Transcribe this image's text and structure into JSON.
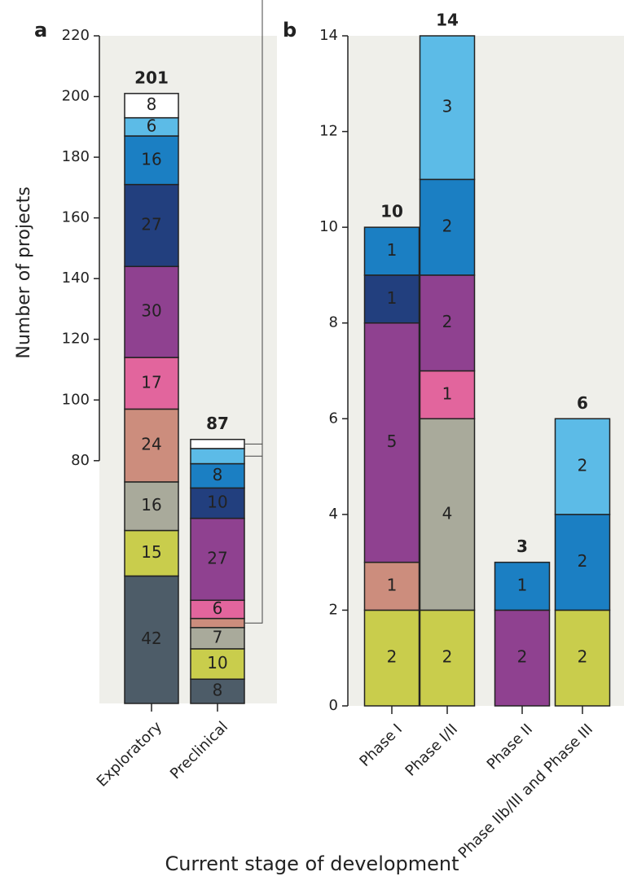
{
  "chart_data": [
    {
      "type": "stacked_bar",
      "panel": "a",
      "ylabel": "Number of projects",
      "xlabel": "Current stage of development",
      "categories": [
        "Exploratory",
        "Preclinical"
      ],
      "totals": [
        201,
        87
      ],
      "ylim": [
        0,
        220
      ],
      "yticks": [
        80,
        100,
        120,
        140,
        160,
        180,
        200,
        220
      ],
      "series": [
        {
          "color": "#4d5c68",
          "label_color": "#ffffff",
          "values": [
            42,
            8
          ]
        },
        {
          "color": "#c9cd4c",
          "label_color": "#222222",
          "values": [
            15,
            10
          ]
        },
        {
          "color": "#a9aa9b",
          "label_color": "#222222",
          "values": [
            16,
            7
          ]
        },
        {
          "color": "#cc8d7d",
          "label_color": "#222222",
          "values": [
            24,
            3
          ]
        },
        {
          "color": "#e2659d",
          "label_color": "#222222",
          "values": [
            17,
            6
          ]
        },
        {
          "color": "#8f4190",
          "label_color": "#ffffff",
          "values": [
            30,
            27
          ]
        },
        {
          "color": "#223f7e",
          "label_color": "#ffffff",
          "values": [
            27,
            10
          ]
        },
        {
          "color": "#1b7fc3",
          "label_color": "#ffffff",
          "values": [
            16,
            8
          ]
        },
        {
          "color": "#5cbbe7",
          "label_color": "#222222",
          "values": [
            6,
            5
          ]
        },
        {
          "color": "#ffffff",
          "label_color": "#222222",
          "values": [
            8,
            3
          ]
        }
      ]
    },
    {
      "type": "stacked_bar",
      "panel": "b",
      "categories": [
        "Phase I",
        "Phase I/II",
        "Phase II",
        "Phase IIb/III and Phase III"
      ],
      "totals": [
        10,
        14,
        3,
        6
      ],
      "ylim": [
        0,
        14
      ],
      "yticks": [
        0,
        2,
        4,
        6,
        8,
        10,
        12,
        14
      ],
      "series": [
        {
          "color": "#c9cd4c",
          "label_color": "#222222",
          "values": [
            2,
            2,
            null,
            2
          ]
        },
        {
          "color": "#a9aa9b",
          "label_color": "#222222",
          "values": [
            null,
            4,
            null,
            null
          ]
        },
        {
          "color": "#cc8d7d",
          "label_color": "#222222",
          "values": [
            1,
            null,
            null,
            null
          ]
        },
        {
          "color": "#e2659d",
          "label_color": "#222222",
          "values": [
            null,
            1,
            null,
            null
          ]
        },
        {
          "color": "#8f4190",
          "label_color": "#ffffff",
          "values": [
            5,
            2,
            2,
            null
          ]
        },
        {
          "color": "#223f7e",
          "label_color": "#ffffff",
          "values": [
            1,
            null,
            null,
            null
          ]
        },
        {
          "color": "#1b7fc3",
          "label_color": "#ffffff",
          "values": [
            1,
            2,
            1,
            2
          ]
        },
        {
          "color": "#5cbbe7",
          "label_color": "#222222",
          "values": [
            null,
            3,
            null,
            2
          ]
        }
      ]
    }
  ]
}
